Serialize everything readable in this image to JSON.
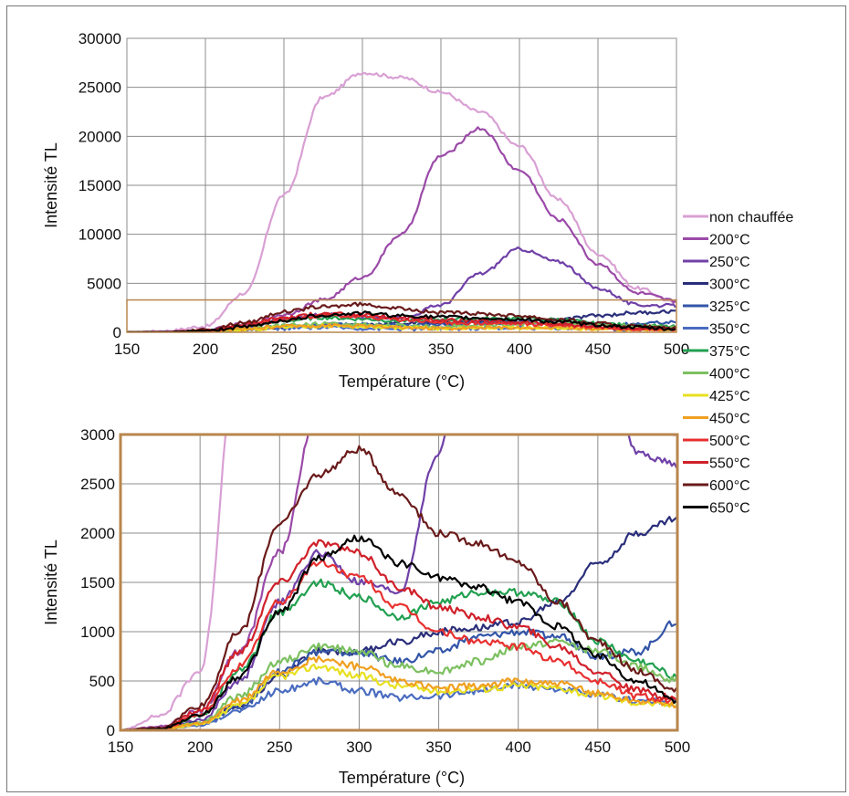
{
  "chart_data": [
    {
      "type": "line",
      "title": "",
      "xlabel": "Température (°C)",
      "ylabel": "Intensité TL",
      "xlim": [
        150,
        500
      ],
      "ylim": [
        0,
        30000
      ],
      "x_ticks": [
        150,
        200,
        250,
        300,
        350,
        400,
        450,
        500
      ],
      "y_ticks": [
        0,
        5000,
        10000,
        15000,
        20000,
        25000,
        30000
      ],
      "grid": true,
      "highlight_box": {
        "x": [
          150,
          500
        ],
        "y": [
          0,
          3300
        ],
        "color": "#b8864e"
      }
    },
    {
      "type": "line",
      "title": "",
      "xlabel": "Température (°C)",
      "ylabel": "Intensité TL",
      "xlim": [
        150,
        500
      ],
      "ylim": [
        0,
        3000
      ],
      "x_ticks": [
        150,
        200,
        250,
        300,
        350,
        400,
        450,
        500
      ],
      "y_ticks": [
        0,
        500,
        1000,
        1500,
        2000,
        2500,
        3000
      ],
      "grid": true,
      "frame_color": "#b8864e"
    }
  ],
  "x": [
    150,
    175,
    200,
    225,
    250,
    275,
    300,
    325,
    350,
    375,
    400,
    425,
    450,
    475,
    500
  ],
  "series": [
    {
      "name": "non chauffée",
      "color": "#d9a0d4",
      "values": [
        0,
        150,
        600,
        4000,
        14000,
        24000,
        26500,
        26000,
        24500,
        22500,
        19000,
        13500,
        8000,
        4500,
        3000
      ]
    },
    {
      "name": "200°C",
      "color": "#9b4aa8",
      "values": [
        0,
        40,
        200,
        800,
        1800,
        3300,
        5600,
        10000,
        18000,
        20800,
        16500,
        11500,
        7000,
        4000,
        3200
      ]
    },
    {
      "name": "250°C",
      "color": "#7040a8",
      "values": [
        0,
        20,
        100,
        500,
        1300,
        1800,
        1500,
        1400,
        2800,
        6000,
        8500,
        7200,
        4500,
        2800,
        2700
      ]
    },
    {
      "name": "300°C",
      "color": "#2a2e7a",
      "values": [
        0,
        10,
        80,
        250,
        550,
        800,
        800,
        900,
        1000,
        1050,
        1100,
        1300,
        1700,
        2000,
        2150
      ]
    },
    {
      "name": "325°C",
      "color": "#3355a8",
      "values": [
        0,
        10,
        60,
        230,
        600,
        800,
        780,
        700,
        800,
        950,
        1000,
        950,
        750,
        800,
        1100
      ]
    },
    {
      "name": "350°C",
      "color": "#4a6cc0",
      "values": [
        0,
        8,
        50,
        200,
        400,
        500,
        400,
        330,
        350,
        400,
        450,
        420,
        350,
        300,
        280
      ]
    },
    {
      "name": "375°C",
      "color": "#22a050",
      "values": [
        0,
        15,
        150,
        600,
        1200,
        1500,
        1350,
        1150,
        1300,
        1400,
        1400,
        1300,
        900,
        700,
        550
      ]
    },
    {
      "name": "400°C",
      "color": "#7cc060",
      "values": [
        0,
        10,
        80,
        350,
        700,
        850,
        800,
        650,
        600,
        700,
        850,
        900,
        800,
        650,
        500
      ]
    },
    {
      "name": "425°C",
      "color": "#e8e020",
      "values": [
        0,
        8,
        60,
        250,
        550,
        650,
        550,
        450,
        400,
        420,
        450,
        430,
        350,
        280,
        250
      ]
    },
    {
      "name": "450°C",
      "color": "#f0a020",
      "values": [
        0,
        10,
        70,
        300,
        600,
        720,
        650,
        500,
        420,
        450,
        500,
        470,
        380,
        300,
        260
      ]
    },
    {
      "name": "500°C",
      "color": "#e83030",
      "values": [
        0,
        15,
        150,
        650,
        1300,
        1700,
        1550,
        1250,
        1000,
        900,
        850,
        700,
        500,
        350,
        300
      ]
    },
    {
      "name": "550°C",
      "color": "#d0202a",
      "values": [
        0,
        18,
        200,
        800,
        1500,
        1900,
        1800,
        1450,
        1250,
        1150,
        1050,
        850,
        600,
        400,
        320
      ]
    },
    {
      "name": "600°C",
      "color": "#6a1a1a",
      "values": [
        0,
        25,
        250,
        1000,
        2100,
        2600,
        2850,
        2400,
        2000,
        1900,
        1700,
        1300,
        900,
        600,
        400
      ]
    },
    {
      "name": "650°C",
      "color": "#000000",
      "values": [
        0,
        15,
        150,
        550,
        1200,
        1750,
        1950,
        1700,
        1550,
        1450,
        1300,
        1050,
        750,
        500,
        300
      ]
    }
  ]
}
